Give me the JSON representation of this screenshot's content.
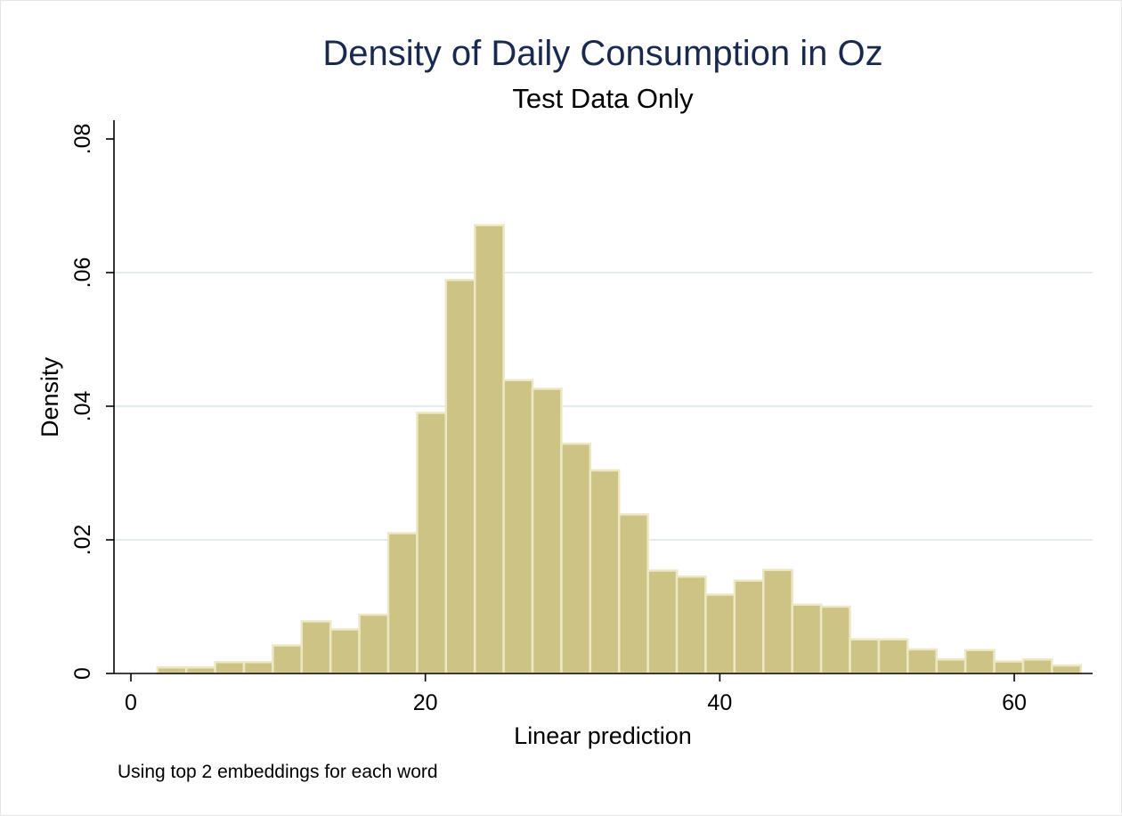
{
  "chart_data": {
    "type": "bar",
    "title": "Density of Daily Consumption in Oz",
    "subtitle": "Test Data Only",
    "xlabel": "Linear prediction",
    "ylabel": "Density",
    "note": "Using top 2 embeddings for each word",
    "xlim": [
      0,
      65
    ],
    "ylim": [
      0,
      0.08
    ],
    "x_ticks": [
      {
        "value": 0,
        "label": "0"
      },
      {
        "value": 20,
        "label": "20"
      },
      {
        "value": 40,
        "label": "40"
      },
      {
        "value": 60,
        "label": "60"
      }
    ],
    "y_ticks": [
      {
        "value": 0,
        "label": "0"
      },
      {
        "value": 0.02,
        "label": ".02"
      },
      {
        "value": 0.04,
        "label": ".04"
      },
      {
        "value": 0.06,
        "label": ".06"
      },
      {
        "value": 0.08,
        "label": ".08"
      }
    ],
    "grid": "horizontal",
    "bin_width": 1.96,
    "bin_start": 1.8,
    "values": [
      0.0009,
      0.0009,
      0.0017,
      0.0017,
      0.0042,
      0.0078,
      0.0066,
      0.0088,
      0.021,
      0.039,
      0.0589,
      0.0671,
      0.0439,
      0.0426,
      0.0344,
      0.0304,
      0.0238,
      0.0154,
      0.0145,
      0.0118,
      0.0139,
      0.0155,
      0.0103,
      0.01,
      0.0051,
      0.0051,
      0.0036,
      0.0021,
      0.0035,
      0.0018,
      0.0021,
      0.0012
    ],
    "colors": {
      "bar_fill": "#cdc384",
      "bar_outline": "#ece8c4",
      "title": "#1a2a4f",
      "grid": "#e3ece9"
    }
  }
}
